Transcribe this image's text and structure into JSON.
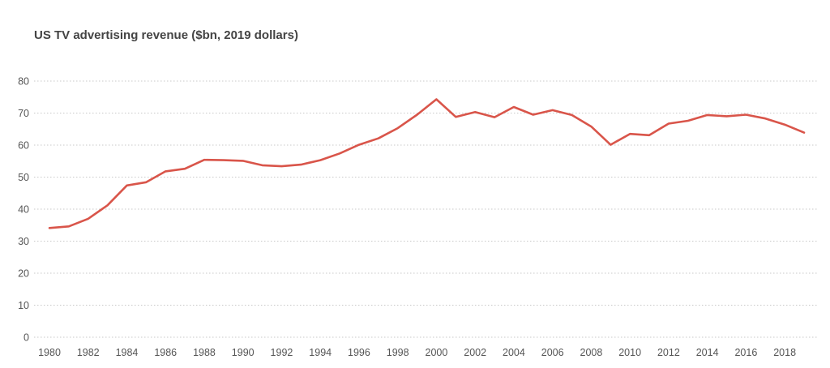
{
  "chart_data": {
    "type": "line",
    "title": "US TV advertising revenue ($bn, 2019 dollars)",
    "xlabel": "",
    "ylabel": "",
    "ylim": [
      0,
      80
    ],
    "yticks": [
      0,
      10,
      20,
      30,
      40,
      50,
      60,
      70,
      80
    ],
    "xticks": [
      1980,
      1982,
      1984,
      1986,
      1988,
      1990,
      1992,
      1994,
      1996,
      1998,
      2000,
      2002,
      2004,
      2006,
      2008,
      2010,
      2012,
      2014,
      2016,
      2018
    ],
    "grid": true,
    "line_color": "#d9554a",
    "series": [
      {
        "name": "US TV advertising revenue",
        "x": [
          1980,
          1981,
          1982,
          1983,
          1984,
          1985,
          1986,
          1987,
          1988,
          1989,
          1990,
          1991,
          1992,
          1993,
          1994,
          1995,
          1996,
          1997,
          1998,
          1999,
          2000,
          2001,
          2002,
          2003,
          2004,
          2005,
          2006,
          2007,
          2008,
          2009,
          2010,
          2011,
          2012,
          2013,
          2014,
          2015,
          2016,
          2017,
          2018,
          2019
        ],
        "values": [
          34.1,
          34.6,
          37.0,
          41.2,
          47.4,
          48.4,
          51.8,
          52.6,
          55.4,
          55.3,
          55.1,
          53.7,
          53.4,
          53.9,
          55.3,
          57.4,
          60.1,
          62.1,
          65.3,
          69.5,
          74.3,
          68.8,
          70.3,
          68.7,
          71.9,
          69.5,
          70.9,
          69.4,
          65.8,
          60.1,
          63.5,
          63.1,
          66.7,
          67.6,
          69.4,
          69.0,
          69.5,
          68.3,
          66.4,
          63.9
        ]
      }
    ]
  }
}
